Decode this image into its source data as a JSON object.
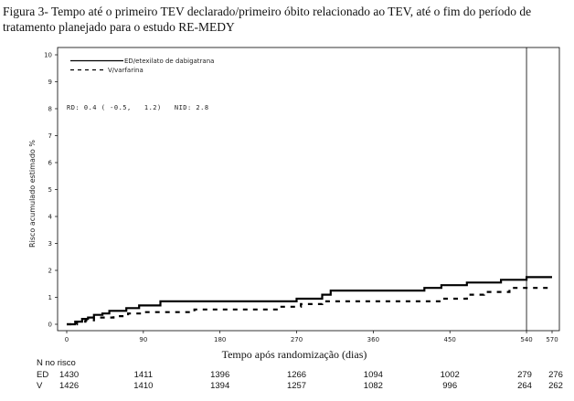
{
  "caption": "Figura 3- Tempo até o primeiro  TEV declarado/primeiro óbito relacionado ao TEV, até o fim do período de tratamento planejado para o estudo RE-MEDY",
  "chart_data": {
    "type": "line",
    "step": true,
    "xlabel": "Tempo após randomização  (dias)",
    "ylabel": "Risco acumulado estimado %",
    "xlim": [
      0,
      570
    ],
    "ylim": [
      0,
      10
    ],
    "xticks": [
      0,
      90,
      180,
      270,
      360,
      450,
      540,
      570
    ],
    "yticks": [
      0,
      1,
      2,
      3,
      4,
      5,
      6,
      7,
      8,
      9,
      10
    ],
    "reference_line_x": 540,
    "legend_position": "top-left",
    "annotation": "RD: 0.4 ( -0.5,   1.2)   NID: 2.8",
    "series": [
      {
        "name": "ED/etexilato de dabigatrana",
        "style": "solid",
        "color": "#000000",
        "points": [
          [
            0,
            0
          ],
          [
            10,
            0
          ],
          [
            10,
            0.1
          ],
          [
            18,
            0.1
          ],
          [
            18,
            0.2
          ],
          [
            25,
            0.2
          ],
          [
            25,
            0.25
          ],
          [
            32,
            0.25
          ],
          [
            32,
            0.35
          ],
          [
            42,
            0.35
          ],
          [
            42,
            0.4
          ],
          [
            50,
            0.4
          ],
          [
            50,
            0.5
          ],
          [
            70,
            0.5
          ],
          [
            70,
            0.6
          ],
          [
            85,
            0.6
          ],
          [
            85,
            0.7
          ],
          [
            110,
            0.7
          ],
          [
            110,
            0.85
          ],
          [
            270,
            0.85
          ],
          [
            270,
            0.95
          ],
          [
            300,
            0.95
          ],
          [
            300,
            1.1
          ],
          [
            310,
            1.1
          ],
          [
            310,
            1.25
          ],
          [
            420,
            1.25
          ],
          [
            420,
            1.35
          ],
          [
            440,
            1.35
          ],
          [
            440,
            1.45
          ],
          [
            470,
            1.45
          ],
          [
            470,
            1.55
          ],
          [
            510,
            1.55
          ],
          [
            510,
            1.65
          ],
          [
            540,
            1.65
          ],
          [
            540,
            1.75
          ],
          [
            570,
            1.75
          ]
        ]
      },
      {
        "name": "V/varfarina",
        "style": "dashed",
        "color": "#000000",
        "points": [
          [
            0,
            0
          ],
          [
            12,
            0
          ],
          [
            12,
            0.1
          ],
          [
            22,
            0.1
          ],
          [
            22,
            0.15
          ],
          [
            32,
            0.15
          ],
          [
            32,
            0.25
          ],
          [
            55,
            0.25
          ],
          [
            55,
            0.3
          ],
          [
            72,
            0.3
          ],
          [
            72,
            0.4
          ],
          [
            90,
            0.4
          ],
          [
            90,
            0.45
          ],
          [
            150,
            0.45
          ],
          [
            150,
            0.55
          ],
          [
            250,
            0.55
          ],
          [
            250,
            0.65
          ],
          [
            275,
            0.65
          ],
          [
            275,
            0.75
          ],
          [
            300,
            0.75
          ],
          [
            300,
            0.85
          ],
          [
            440,
            0.85
          ],
          [
            440,
            0.95
          ],
          [
            470,
            0.95
          ],
          [
            470,
            1.1
          ],
          [
            490,
            1.1
          ],
          [
            490,
            1.2
          ],
          [
            520,
            1.2
          ],
          [
            520,
            1.35
          ],
          [
            570,
            1.35
          ]
        ]
      }
    ],
    "risk_table": {
      "title": "N no risco",
      "x": [
        0,
        90,
        180,
        270,
        360,
        450,
        540,
        570
      ],
      "rows": [
        {
          "label": "ED",
          "values": [
            "1430",
            "1411",
            "1396",
            "1266",
            "1094",
            "1002",
            "279",
            "276"
          ]
        },
        {
          "label": "V",
          "values": [
            "1426",
            "1410",
            "1394",
            "1257",
            "1082",
            "996",
            "264",
            "262"
          ]
        }
      ]
    }
  }
}
